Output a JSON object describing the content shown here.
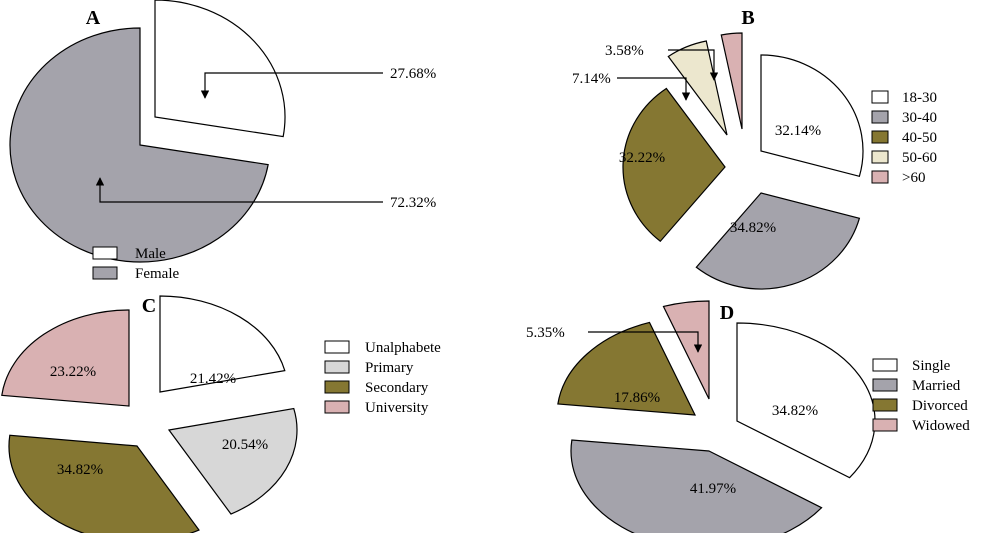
{
  "chart_data": [
    {
      "panel": "A",
      "type": "pie",
      "title": "A",
      "labels": [
        "Male",
        "Female"
      ],
      "values": [
        27.68,
        72.32
      ],
      "value_labels": [
        "27.68%",
        "72.32%"
      ],
      "colors": [
        "#ffffff",
        "#a4a3ab"
      ],
      "legend_position": "bottom",
      "exploded": [
        true,
        false
      ]
    },
    {
      "panel": "B",
      "type": "pie",
      "title": "B",
      "labels": [
        "18-30",
        "30-40",
        "40-50",
        "50-60",
        ">60"
      ],
      "values": [
        32.14,
        34.82,
        32.22,
        7.14,
        3.58
      ],
      "value_labels": [
        "32.14%",
        "34.82%",
        "32.22%",
        "7.14%",
        "3.58%"
      ],
      "colors": [
        "#ffffff",
        "#a4a3ab",
        "#857732",
        "#ece7ce",
        "#d9b1b2"
      ],
      "legend_position": "right",
      "exploded": [
        true,
        true,
        true,
        true,
        true
      ]
    },
    {
      "panel": "C",
      "type": "pie",
      "title": "C",
      "labels": [
        "Unalphabete",
        "Primary",
        "Secondary",
        "University"
      ],
      "values": [
        21.42,
        20.54,
        34.82,
        23.22
      ],
      "value_labels": [
        "21.42%",
        "20.54%",
        "34.82%",
        "23.22%"
      ],
      "colors": [
        "#ffffff",
        "#d7d7d7",
        "#857732",
        "#d9b1b2"
      ],
      "legend_position": "right",
      "exploded": [
        true,
        true,
        true,
        true
      ]
    },
    {
      "panel": "D",
      "type": "pie",
      "title": "D",
      "labels": [
        "Single",
        "Married",
        "Divorced",
        "Widowed"
      ],
      "values": [
        34.82,
        41.97,
        17.86,
        5.35
      ],
      "value_labels": [
        "34.82%",
        "41.97%",
        "17.86%",
        "5.35%"
      ],
      "colors": [
        "#ffffff",
        "#a4a3ab",
        "#857732",
        "#d9b1b2"
      ],
      "legend_position": "right",
      "exploded": [
        true,
        true,
        true,
        true
      ]
    }
  ]
}
